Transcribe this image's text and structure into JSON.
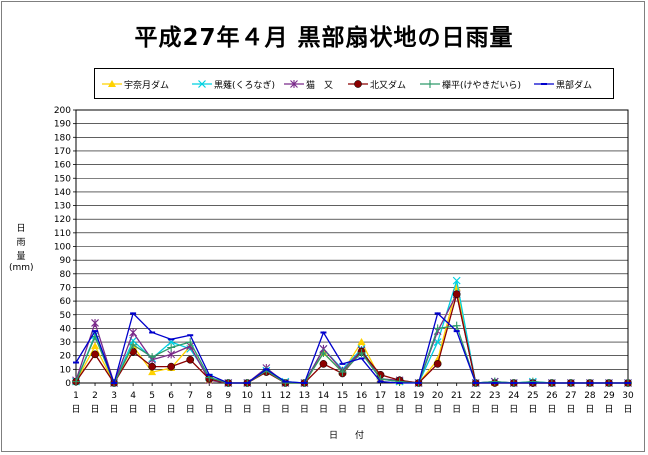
{
  "chart_data": {
    "type": "line",
    "title": "平成27年４月 黒部扇状地の日雨量",
    "ylabel": "日雨量",
    "yunit": "(mm)",
    "xlabel": "日　付",
    "ylim": [
      0,
      200
    ],
    "yticks": [
      0,
      10,
      20,
      30,
      40,
      50,
      60,
      70,
      80,
      90,
      100,
      110,
      120,
      130,
      140,
      150,
      160,
      170,
      180,
      190,
      200
    ],
    "categories": [
      "1",
      "2",
      "3",
      "4",
      "5",
      "6",
      "7",
      "8",
      "9",
      "10",
      "11",
      "12",
      "13",
      "14",
      "15",
      "16",
      "17",
      "18",
      "19",
      "20",
      "21",
      "22",
      "23",
      "24",
      "25",
      "26",
      "27",
      "28",
      "29",
      "30"
    ],
    "day_suffix": "日",
    "grid": true,
    "legend_position": "top",
    "series": [
      {
        "name": "宇奈月ダム",
        "color": "#ffd200",
        "marker": "triangle",
        "values": [
          1,
          27,
          0,
          27,
          8,
          11,
          27,
          2,
          0,
          0,
          9,
          0,
          0,
          22,
          8,
          30,
          3,
          1,
          0,
          17,
          70,
          0,
          0,
          0,
          0,
          0,
          0,
          0,
          0,
          0
        ]
      },
      {
        "name": "黒薙(くろなぎ)",
        "color": "#00d0e0",
        "marker": "x",
        "values": [
          1,
          35,
          0,
          31,
          18,
          30,
          25,
          4,
          0,
          0,
          9,
          1,
          0,
          25,
          10,
          25,
          3,
          1,
          0,
          30,
          75,
          0,
          1,
          0,
          1,
          0,
          0,
          0,
          0,
          0
        ]
      },
      {
        "name": "猫　又",
        "color": "#7a2a8a",
        "marker": "star",
        "values": [
          2,
          44,
          0,
          37,
          17,
          21,
          27,
          2,
          0,
          0,
          11,
          0,
          0,
          25,
          9,
          24,
          3,
          2,
          0,
          38,
          65,
          0,
          1,
          0,
          0,
          0,
          0,
          0,
          0,
          0
        ]
      },
      {
        "name": "北又ダム",
        "color": "#8b0000",
        "marker": "circle",
        "values": [
          1,
          21,
          0,
          23,
          12,
          12,
          17,
          3,
          0,
          0,
          8,
          0,
          0,
          14,
          7,
          23,
          6,
          2,
          0,
          14,
          65,
          0,
          0,
          0,
          0,
          0,
          0,
          0,
          0,
          0
        ]
      },
      {
        "name": "欅平(けやきだいら)",
        "color": "#2e9a6a",
        "marker": "plus",
        "values": [
          1,
          34,
          0,
          28,
          19,
          26,
          30,
          4,
          0,
          0,
          9,
          0,
          0,
          22,
          8,
          22,
          3,
          1,
          0,
          40,
          42,
          0,
          1,
          0,
          1,
          0,
          0,
          0,
          0,
          0
        ]
      },
      {
        "name": "黒部ダム",
        "color": "#0000cc",
        "marker": "dash",
        "values": [
          15,
          38,
          0,
          51,
          37,
          32,
          35,
          6,
          0,
          0,
          10,
          1,
          0,
          37,
          14,
          18,
          1,
          0,
          0,
          51,
          38,
          0,
          0,
          0,
          0,
          0,
          0,
          0,
          0,
          0
        ]
      }
    ]
  }
}
